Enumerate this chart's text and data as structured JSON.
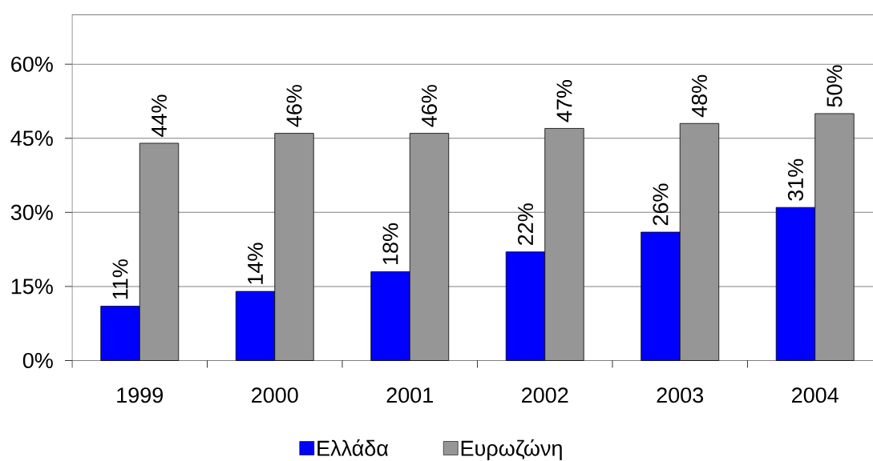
{
  "chart_data": {
    "type": "bar",
    "categories": [
      "1999",
      "2000",
      "2001",
      "2002",
      "2003",
      "2004"
    ],
    "series": [
      {
        "name": "Ελλάδα",
        "color": "#0000ff",
        "values": [
          11,
          14,
          18,
          22,
          26,
          31
        ],
        "value_labels": [
          "11%",
          "14%",
          "18%",
          "22%",
          "26%",
          "31%"
        ]
      },
      {
        "name": "Ευρωζώνη",
        "color": "#969696",
        "values": [
          44,
          46,
          46,
          47,
          48,
          50
        ],
        "value_labels": [
          "44%",
          "46%",
          "46%",
          "47%",
          "48%",
          "50%"
        ]
      }
    ],
    "ylim": [
      0,
      70
    ],
    "yticks": [
      {
        "value": 0,
        "label": "0%"
      },
      {
        "value": 15,
        "label": "15%"
      },
      {
        "value": 30,
        "label": "30%"
      },
      {
        "value": 45,
        "label": "45%"
      },
      {
        "value": 60,
        "label": "60%"
      }
    ],
    "grid": "y",
    "legend": "bottom"
  }
}
